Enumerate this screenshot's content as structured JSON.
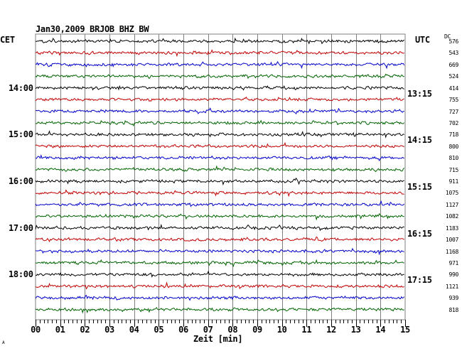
{
  "header": {
    "title": "Jan30,2009   BRJOB BHZ BW",
    "left_tz": "CET",
    "right_tz": "UTC",
    "dc_label": "DC"
  },
  "xaxis": {
    "label": "Zeit [min]",
    "footer_mark": "A"
  },
  "colors": {
    "trace_cycle": [
      "#000000",
      "#c00000",
      "#0000c8",
      "#006400"
    ],
    "grid": "#7f7f7f"
  },
  "chart_data": {
    "type": "line",
    "title": "Jan30,2009   BRJOB BHZ BW",
    "xlabel": "Zeit [min]",
    "xlim": [
      0,
      15
    ],
    "xticks": [
      "00",
      "01",
      "02",
      "03",
      "04",
      "05",
      "06",
      "07",
      "08",
      "09",
      "10",
      "11",
      "12",
      "13",
      "14",
      "15"
    ],
    "left_time_labels": [
      {
        "label": "14:00",
        "row": 4
      },
      {
        "label": "15:00",
        "row": 8
      },
      {
        "label": "16:00",
        "row": 12
      },
      {
        "label": "17:00",
        "row": 16
      },
      {
        "label": "18:00",
        "row": 20
      }
    ],
    "right_time_labels": [
      {
        "label": "13:15",
        "row": 4
      },
      {
        "label": "14:15",
        "row": 8
      },
      {
        "label": "15:15",
        "row": 12
      },
      {
        "label": "16:15",
        "row": 16
      },
      {
        "label": "17:15",
        "row": 20
      }
    ],
    "dc_offsets": [
      576,
      543,
      669,
      524,
      414,
      755,
      727,
      702,
      718,
      800,
      810,
      715,
      911,
      1075,
      1127,
      1082,
      1183,
      1007,
      1168,
      971,
      990,
      1121,
      939,
      818
    ],
    "grid": true
  }
}
